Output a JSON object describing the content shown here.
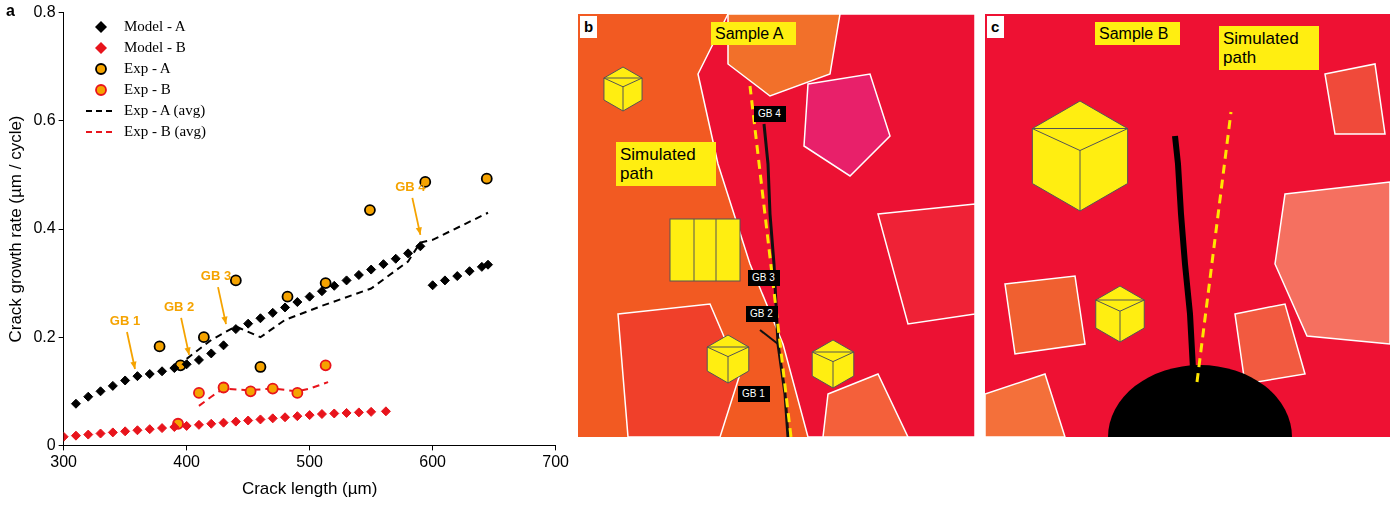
{
  "chart_data": {
    "type": "scatter",
    "panel_label": "a",
    "x_label": "Crack length (µm)",
    "y_label": "Crack growth rate (µm / cycle)",
    "xlim": [
      300,
      700
    ],
    "xticks": [
      300,
      400,
      500,
      600,
      700
    ],
    "ylim": [
      0,
      0.8
    ],
    "yticks": [
      0,
      0.2,
      0.4,
      0.6,
      0.8
    ],
    "grid": false,
    "legend": "top-left",
    "series": [
      {
        "name": "Model - A",
        "type": "scatter",
        "color": "#000000",
        "marker": "diamond",
        "x": [
          310,
          320,
          330,
          340,
          350,
          360,
          370,
          380,
          390,
          400,
          410,
          420,
          430,
          440,
          450,
          460,
          470,
          480,
          490,
          500,
          510,
          520,
          530,
          540,
          550,
          560,
          570,
          580,
          590,
          600,
          610,
          620,
          630,
          640,
          645
        ],
        "values": [
          0.077,
          0.09,
          0.1,
          0.11,
          0.12,
          0.128,
          0.132,
          0.137,
          0.143,
          0.15,
          0.158,
          0.17,
          0.185,
          0.215,
          0.225,
          0.235,
          0.245,
          0.255,
          0.265,
          0.275,
          0.285,
          0.295,
          0.305,
          0.315,
          0.325,
          0.335,
          0.345,
          0.355,
          0.368,
          0.296,
          0.305,
          0.313,
          0.322,
          0.33,
          0.334
        ]
      },
      {
        "name": "Model - B",
        "type": "scatter",
        "color": "#e8141c",
        "marker": "diamond",
        "x": [
          300,
          310,
          320,
          330,
          340,
          350,
          360,
          370,
          380,
          390,
          400,
          410,
          420,
          430,
          440,
          450,
          460,
          470,
          480,
          490,
          500,
          510,
          520,
          530,
          540,
          550,
          562
        ],
        "values": [
          0.016,
          0.018,
          0.02,
          0.022,
          0.024,
          0.026,
          0.028,
          0.03,
          0.032,
          0.034,
          0.036,
          0.038,
          0.04,
          0.042,
          0.044,
          0.046,
          0.048,
          0.05,
          0.052,
          0.054,
          0.056,
          0.058,
          0.059,
          0.06,
          0.061,
          0.062,
          0.063
        ]
      },
      {
        "name": "Exp - A",
        "type": "scatter",
        "color": "#000000",
        "marker": "circle",
        "x": [
          378,
          395,
          414,
          440,
          460,
          482,
          513,
          549,
          594,
          644
        ],
        "values": [
          0.183,
          0.148,
          0.2,
          0.305,
          0.145,
          0.275,
          0.3,
          0.435,
          0.487,
          0.493
        ]
      },
      {
        "name": "Exp - B",
        "type": "scatter",
        "color": "#e8141c",
        "marker": "circle",
        "x": [
          393,
          410,
          430,
          452,
          470,
          490,
          513
        ],
        "values": [
          0.04,
          0.097,
          0.107,
          0.1,
          0.105,
          0.097,
          0.148
        ]
      },
      {
        "name": "Exp - A (avg)",
        "type": "line",
        "color": "#000000",
        "line_style": "dashed",
        "marker": "none",
        "x": [
          400,
          420,
          440,
          460,
          480,
          510,
          550,
          580,
          590,
          600,
          645
        ],
        "values": [
          0.16,
          0.195,
          0.22,
          0.2,
          0.232,
          0.258,
          0.29,
          0.34,
          0.375,
          0.38,
          0.43
        ]
      },
      {
        "name": "Exp - B (avg)",
        "type": "line",
        "color": "#e8141c",
        "line_style": "dashed",
        "marker": "none",
        "x": [
          410,
          420,
          430,
          450,
          470,
          490,
          500,
          515
        ],
        "values": [
          0.073,
          0.09,
          0.105,
          0.102,
          0.105,
          0.1,
          0.105,
          0.117
        ]
      }
    ],
    "annotations": [
      {
        "text": "GB 1",
        "x": 358,
        "y": 0.132,
        "color": "#f5a300"
      },
      {
        "text": "GB 2",
        "x": 402,
        "y": 0.158,
        "color": "#f5a300"
      },
      {
        "text": "GB 3",
        "x": 432,
        "y": 0.215,
        "color": "#f5a300"
      },
      {
        "text": "GB 4",
        "x": 590,
        "y": 0.38,
        "color": "#f5a300"
      }
    ]
  },
  "micrographs": [
    {
      "panel_label": "b",
      "title": "Sample A",
      "path_label": "Simulated path",
      "grain_boundary_labels": [
        "GB 1",
        "GB 2",
        "GB 3",
        "GB 4"
      ]
    },
    {
      "panel_label": "c",
      "title": "Sample B",
      "path_label": "Simulated path"
    }
  ]
}
